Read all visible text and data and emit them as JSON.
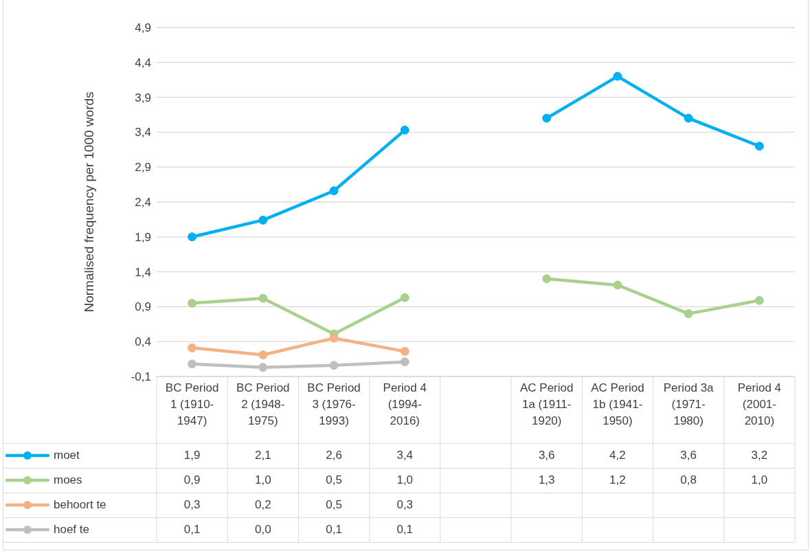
{
  "chart_data": {
    "type": "line",
    "ylabel": "Normalised frequency per 1000 words",
    "categories": [
      "BC Period 1 (1910-1947)",
      "BC Period 2 (1948-1975)",
      "BC Period 3 (1976-1993)",
      "Period 4 (1994-2016)",
      null,
      "AC Period 1a (1911-1920)",
      "AC Period 1b (1941-1950)",
      "Period 3a (1971-1980)",
      "Period 4 (2001-2010)"
    ],
    "series": [
      {
        "name": "moet",
        "color": "#00b0f0",
        "values": [
          1.9,
          2.14,
          2.56,
          3.43,
          null,
          3.6,
          4.2,
          3.6,
          3.2
        ],
        "value_labels": [
          "1,9",
          "2,1",
          "2,6",
          "3,4",
          null,
          "3,6",
          "4,2",
          "3,6",
          "3,2"
        ]
      },
      {
        "name": "moes",
        "color": "#a9d18e",
        "values": [
          0.95,
          1.02,
          0.51,
          1.03,
          null,
          1.3,
          1.21,
          0.8,
          0.99
        ],
        "value_labels": [
          "0,9",
          "1,0",
          "0,5",
          "1,0",
          null,
          "1,3",
          "1,2",
          "0,8",
          "1,0"
        ]
      },
      {
        "name": "behoort te",
        "color": "#f4b183",
        "values": [
          0.31,
          0.21,
          0.45,
          0.26,
          null,
          null,
          null,
          null,
          null
        ],
        "value_labels": [
          "0,3",
          "0,2",
          "0,5",
          "0,3",
          null,
          null,
          null,
          null,
          null
        ]
      },
      {
        "name": "hoef te",
        "color": "#bfbfbf",
        "values": [
          0.08,
          0.03,
          0.06,
          0.11,
          null,
          null,
          null,
          null,
          null
        ],
        "value_labels": [
          "0,1",
          "0,0",
          "0,1",
          "0,1",
          null,
          null,
          null,
          null,
          null
        ]
      }
    ],
    "ylim": [
      -0.1,
      4.9
    ],
    "yticks": [
      {
        "value": -0.1,
        "label": "-0,1"
      },
      {
        "value": 0.4,
        "label": "0,4"
      },
      {
        "value": 0.9,
        "label": "0,9"
      },
      {
        "value": 1.4,
        "label": "1,4"
      },
      {
        "value": 1.9,
        "label": "1,9"
      },
      {
        "value": 2.4,
        "label": "2,4"
      },
      {
        "value": 2.9,
        "label": "2,9"
      },
      {
        "value": 3.4,
        "label": "3,4"
      },
      {
        "value": 3.9,
        "label": "3,9"
      },
      {
        "value": 4.4,
        "label": "4,4"
      },
      {
        "value": 4.9,
        "label": "4,9"
      }
    ],
    "grid": "y",
    "legend": "bottom",
    "marker": "circle",
    "line_style": "solid"
  }
}
